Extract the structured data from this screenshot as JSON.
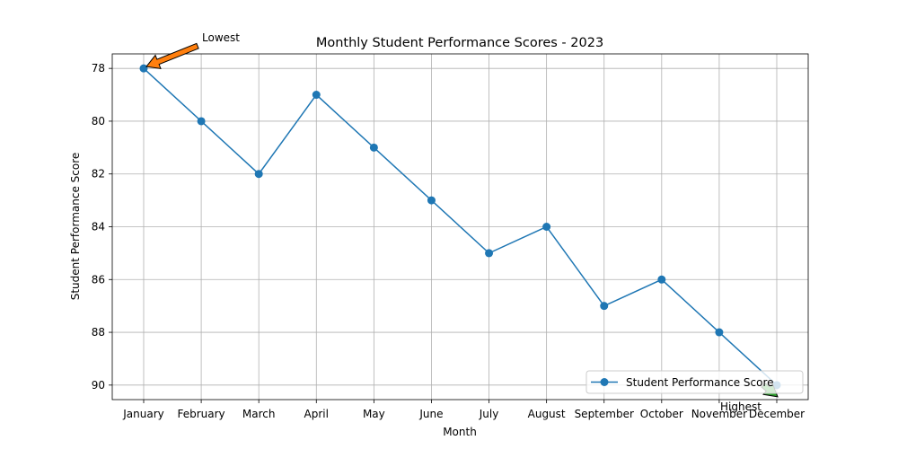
{
  "chart_data": {
    "type": "line",
    "title": "Monthly Student Performance Scores - 2023",
    "xlabel": "Month",
    "ylabel": "Student Performance Score",
    "categories": [
      "January",
      "February",
      "March",
      "April",
      "May",
      "June",
      "July",
      "August",
      "September",
      "October",
      "November",
      "December"
    ],
    "series": [
      {
        "name": "Student Performance Score",
        "values": [
          78,
          80,
          82,
          79,
          81,
          83,
          85,
          84,
          87,
          86,
          88,
          90
        ],
        "color": "#1f77b4"
      }
    ],
    "yticks": [
      "78",
      "80",
      "82",
      "84",
      "86",
      "88",
      "90"
    ],
    "ylim": [
      90.55,
      77.45
    ],
    "y_inverted": true,
    "grid": true,
    "legend_position": "lower-right",
    "annotations": [
      {
        "text": "Lowest",
        "category": "January",
        "value": 78,
        "arrow_color": "#ff7f0e"
      },
      {
        "text": "Highest",
        "category": "December",
        "value": 90,
        "arrow_color": "#2ca02c"
      }
    ]
  }
}
